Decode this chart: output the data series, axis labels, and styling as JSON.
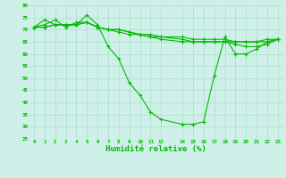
{
  "background_color": "#cff0e8",
  "grid_color": "#aaddcc",
  "line_color": "#00bb00",
  "marker_color": "#00bb00",
  "xlabel": "Humidité relative (%)",
  "xlabel_color": "#00bb00",
  "tick_color": "#00bb00",
  "ylim": [
    25,
    80
  ],
  "yticks": [
    25,
    30,
    35,
    40,
    45,
    50,
    55,
    60,
    65,
    70,
    75,
    80
  ],
  "x_vals": [
    0,
    1,
    2,
    3,
    4,
    5,
    6,
    7,
    8,
    9,
    10,
    11,
    12,
    14,
    15,
    16,
    17,
    18,
    19,
    20,
    21,
    22,
    23
  ],
  "xtick_labels": [
    "0",
    "1",
    "2",
    "3",
    "4",
    "5",
    "6",
    "7",
    "8",
    "9",
    "101",
    "112",
    "",
    "141",
    "151",
    "161",
    "171",
    "181",
    "192",
    "202",
    "212",
    "223",
    ""
  ],
  "series": [
    [
      71,
      74,
      72,
      72,
      72,
      76,
      72,
      63,
      58,
      48,
      43,
      36,
      33,
      31,
      31,
      32,
      51,
      67,
      60,
      60,
      62,
      65,
      66
    ],
    [
      71,
      72,
      74,
      71,
      73,
      73,
      71,
      70,
      69,
      68,
      68,
      67,
      67,
      66,
      65,
      65,
      65,
      65,
      65,
      65,
      65,
      66,
      66
    ],
    [
      71,
      71,
      72,
      72,
      72,
      73,
      71,
      70,
      70,
      69,
      68,
      68,
      67,
      67,
      66,
      66,
      66,
      66,
      65,
      65,
      65,
      65,
      66
    ],
    [
      71,
      71,
      72,
      72,
      72,
      73,
      71,
      70,
      70,
      69,
      68,
      67,
      66,
      65,
      65,
      65,
      65,
      65,
      64,
      63,
      63,
      64,
      66
    ]
  ]
}
